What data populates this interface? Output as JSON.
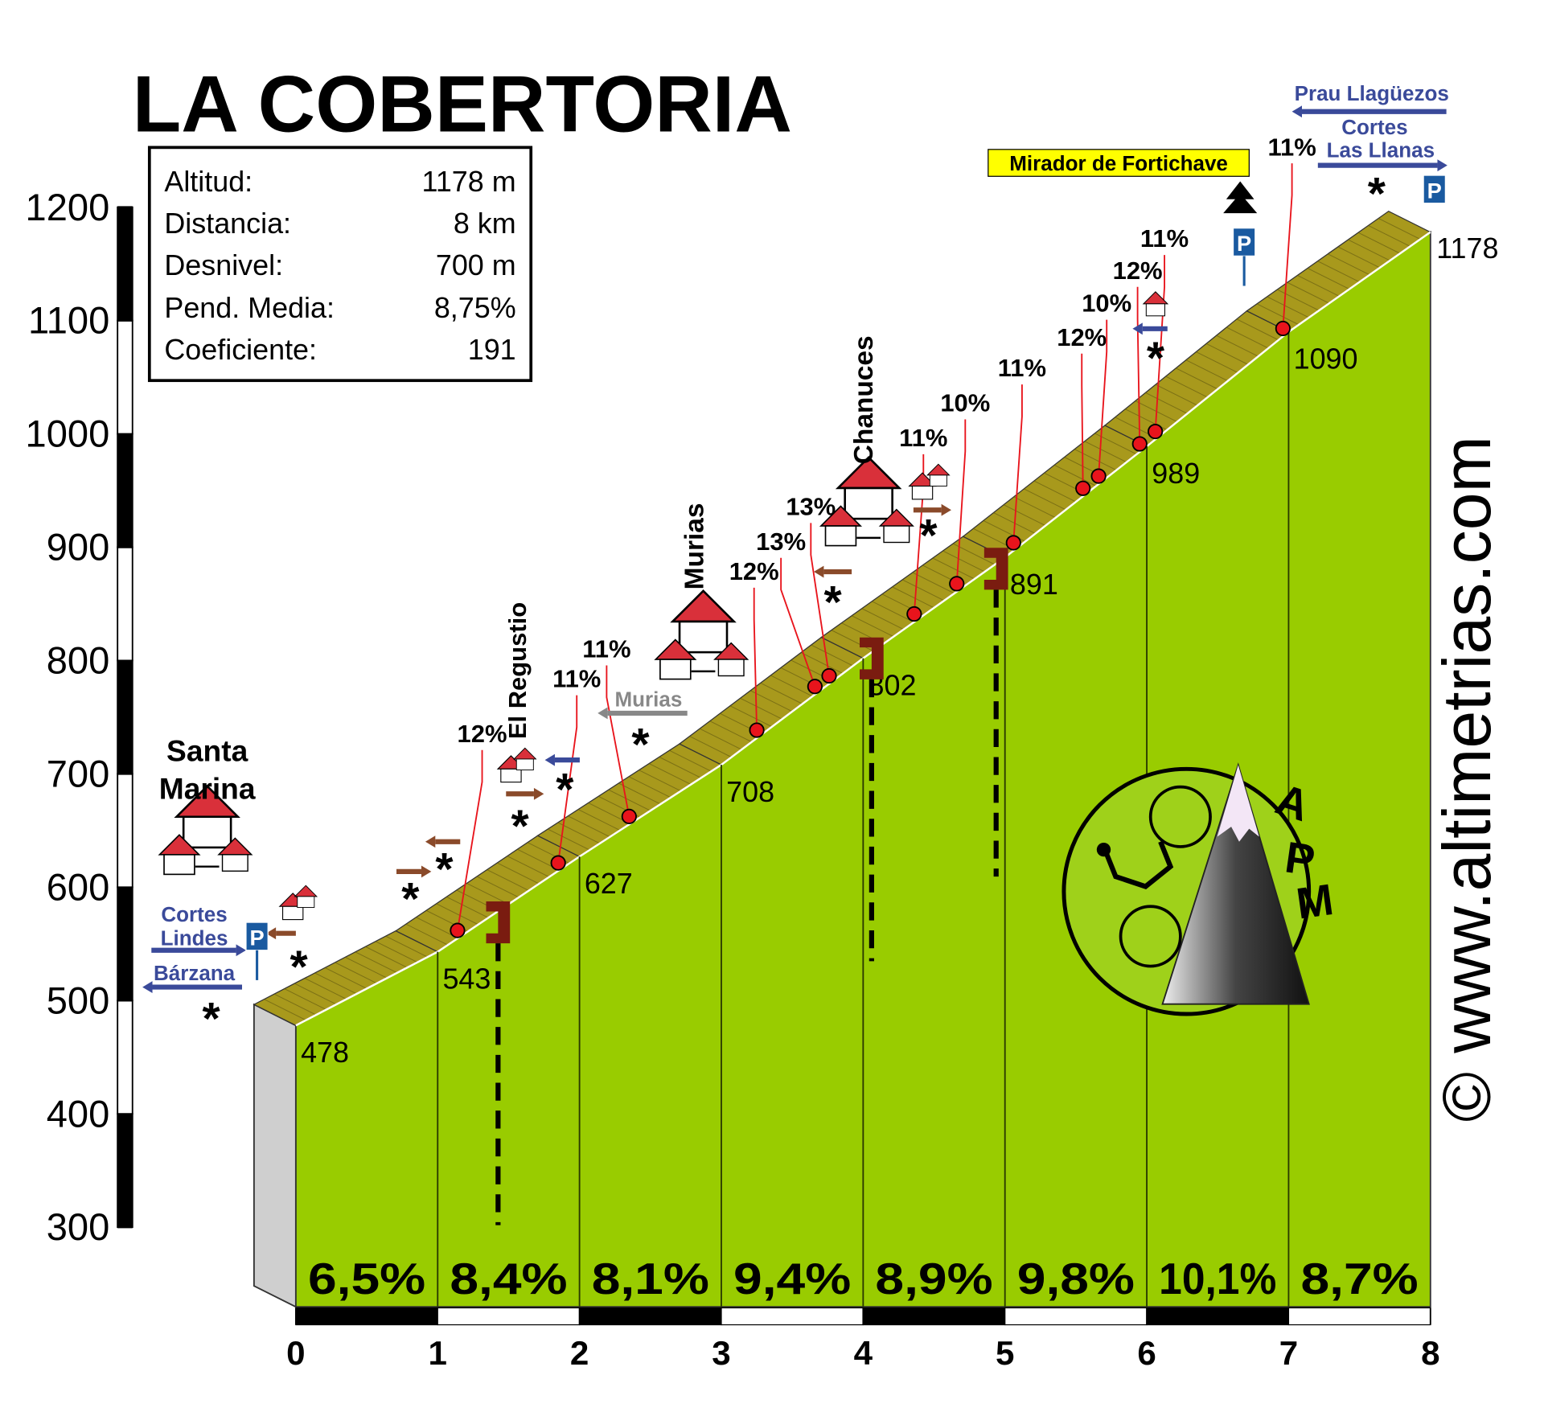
{
  "chart_data": {
    "type": "profile",
    "title": "LA COBERTORIA",
    "info": [
      {
        "label": "Altitud:",
        "value": "1178 m"
      },
      {
        "label": "Distancia:",
        "value": "8 km"
      },
      {
        "label": "Desnivel:",
        "value": "700 m"
      },
      {
        "label": "Pend. Media:",
        "value": "8,75%"
      },
      {
        "label": "Coeficiente:",
        "value": "191"
      }
    ],
    "x": [
      0,
      1,
      2,
      3,
      4,
      5,
      6,
      7,
      8
    ],
    "values": [
      478,
      543,
      627,
      708,
      802,
      891,
      989,
      1090,
      1178
    ],
    "xlim": [
      0,
      8
    ],
    "xticks": [
      0,
      1,
      2,
      3,
      4,
      5,
      6,
      7,
      8
    ],
    "ylim": [
      300,
      1200
    ],
    "yticks": [
      300,
      400,
      500,
      600,
      700,
      800,
      900,
      1000,
      1100,
      1200
    ],
    "color": "#99cc00",
    "band_color": "#a8991c",
    "segment_gradients": {
      "values": [
        6.5,
        8.4,
        8.1,
        9.4,
        8.9,
        9.8,
        10.1,
        8.7
      ],
      "value_labels": [
        "6,5%",
        "8,4%",
        "8,1%",
        "9,4%",
        "8,9%",
        "9,8%",
        "10,1%",
        "8,7%"
      ]
    },
    "ramps": {
      "km": [
        1.14,
        1.85,
        2.35,
        3.25,
        3.66,
        3.76,
        4.36,
        4.66,
        5.06,
        5.55,
        5.66,
        5.95,
        6.06,
        6.96
      ],
      "values": [
        12,
        11,
        11,
        12,
        13,
        13,
        11,
        10,
        11,
        12,
        10,
        12,
        11,
        11
      ],
      "value_labels": [
        "12%",
        "11%",
        "11%",
        "12%",
        "13%",
        "13%",
        "11%",
        "10%",
        "11%",
        "12%",
        "10%",
        "12%",
        "11%",
        "11%"
      ],
      "color": "#e8141c"
    },
    "places": {
      "santa_marina": [
        "Santa",
        "Marina"
      ],
      "el_regustio": "El Regustio",
      "murias": "Murias",
      "chanuces": "Chanuces",
      "mirador": "Mirador de Fortichave"
    },
    "signs": {
      "cortes_lindes": [
        "Cortes",
        "Lindes"
      ],
      "barzana": "Bárzana",
      "murias_road": "Murias",
      "prau": "Prau Llagüezos",
      "cortes_las_llanas": [
        "Cortes",
        "Las Llanas"
      ]
    },
    "watermark": "© www.altimetrias.com",
    "logo": [
      "A",
      "P",
      "M"
    ]
  }
}
